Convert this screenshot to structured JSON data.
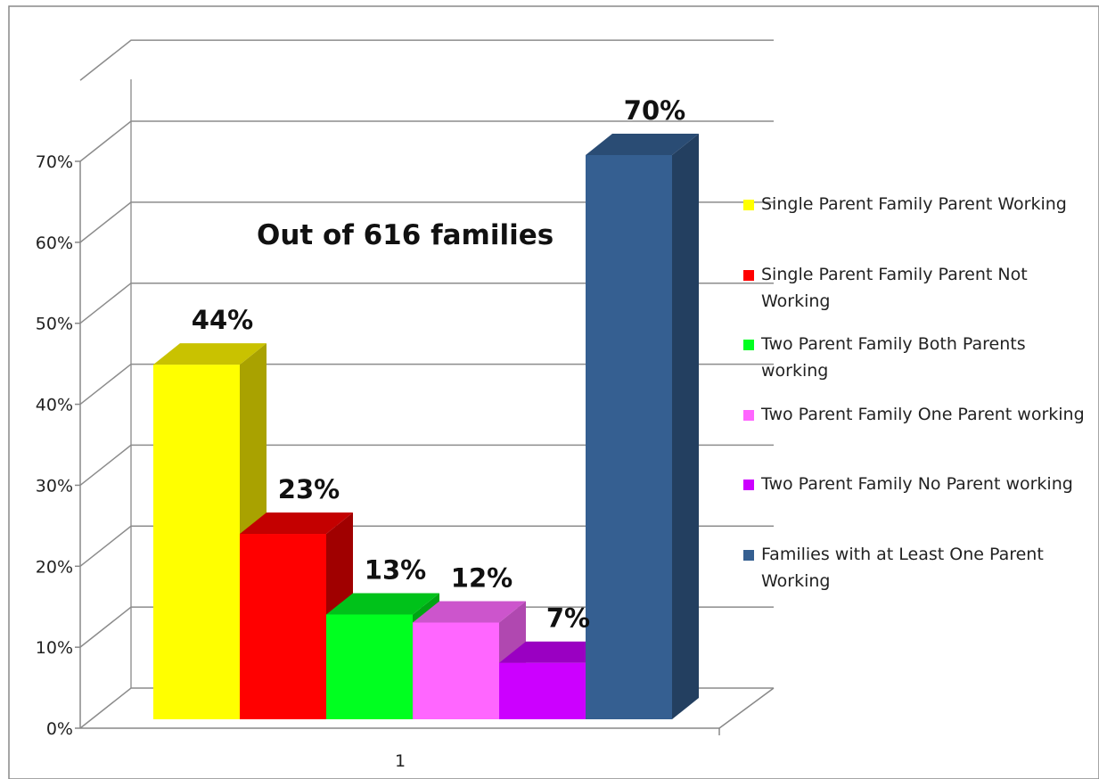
{
  "chart_data": {
    "type": "bar",
    "categories": [
      "1"
    ],
    "series": [
      {
        "name": "Single Parent Family Parent Working",
        "values": [
          44
        ],
        "label": "44%",
        "color": "#ffff00",
        "top_color": "#c9c200",
        "side_color": "#a9a200"
      },
      {
        "name": "Single Parent Family Parent Not Working",
        "values": [
          23
        ],
        "label": "23%",
        "color": "#ff0000",
        "top_color": "#c40000",
        "side_color": "#a00000"
      },
      {
        "name": "Two Parent Family Both Parents working",
        "values": [
          13
        ],
        "label": "13%",
        "color": "#00ff20",
        "top_color": "#00c21a",
        "side_color": "#00a514"
      },
      {
        "name": "Two Parent Family One Parent working",
        "values": [
          12
        ],
        "label": "12%",
        "color": "#ff66ff",
        "top_color": "#cc55cc",
        "side_color": "#b048b0"
      },
      {
        "name": "Two Parent Family No Parent working",
        "values": [
          7
        ],
        "label": "7%",
        "color": "#cc00ff",
        "top_color": "#9a00c2",
        "side_color": "#8200a6"
      },
      {
        "name": "Families with at Least One Parent Working",
        "values": [
          70
        ],
        "label": "70%",
        "color": "#355f91",
        "top_color": "#2a4c74",
        "side_color": "#233f60"
      }
    ],
    "y_ticks": [
      "0%",
      "10%",
      "20%",
      "30%",
      "40%",
      "50%",
      "60%",
      "70%"
    ],
    "ylim": [
      0,
      70
    ],
    "annotation": "Out of 616 families",
    "grid": true,
    "legend_position": "right",
    "title": "",
    "xlabel": "",
    "ylabel": ""
  }
}
